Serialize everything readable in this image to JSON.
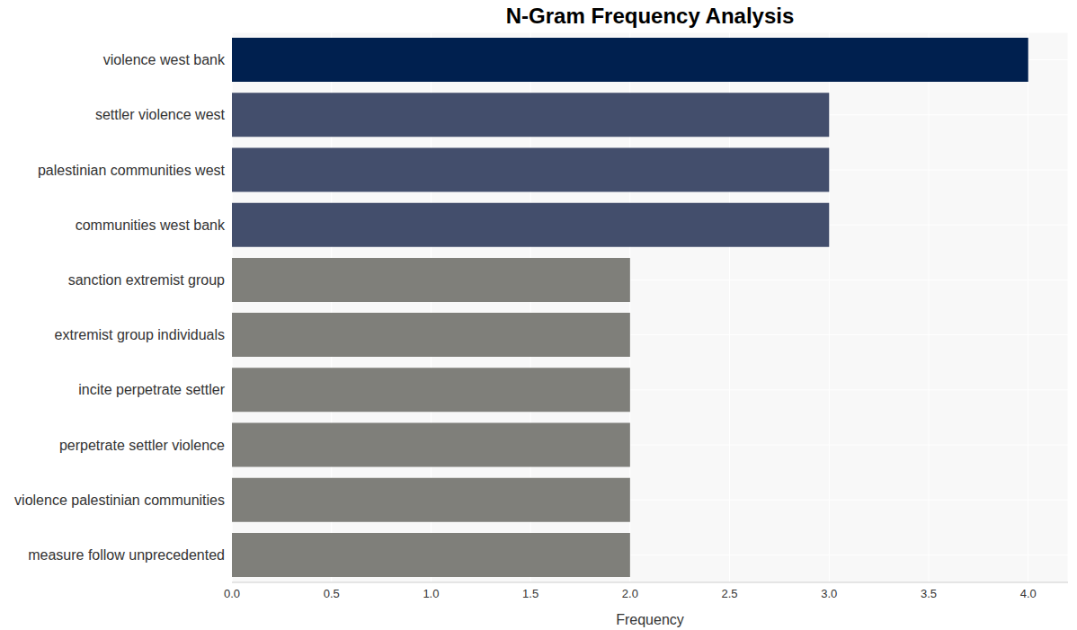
{
  "chart_data": {
    "type": "bar",
    "title": "N-Gram Frequency Analysis",
    "x_label": "Frequency",
    "orientation": "horizontal",
    "categories": [
      "violence west bank",
      "settler violence west",
      "palestinian communities west",
      "communities west bank",
      "sanction extremist group",
      "extremist group individuals",
      "incite perpetrate settler",
      "perpetrate settler violence",
      "violence palestinian communities",
      "measure follow unprecedented"
    ],
    "values": [
      4,
      3,
      3,
      3,
      2,
      2,
      2,
      2,
      2,
      2
    ],
    "colors": [
      "#00204f",
      "#434e6c",
      "#434e6c",
      "#434e6c",
      "#7f7f7a",
      "#7f7f7a",
      "#7f7f7a",
      "#7f7f7a",
      "#7f7f7a",
      "#7f7f7a"
    ],
    "xlim": [
      0,
      4.2
    ],
    "xticks": [
      {
        "value": 0,
        "label": "0.0"
      },
      {
        "value": 0.5,
        "label": "0.5"
      },
      {
        "value": 1,
        "label": "1.0"
      },
      {
        "value": 1.5,
        "label": "1.5"
      },
      {
        "value": 2,
        "label": "2.0"
      },
      {
        "value": 2.5,
        "label": "2.5"
      },
      {
        "value": 3,
        "label": "3.0"
      },
      {
        "value": 3.5,
        "label": "3.5"
      },
      {
        "value": 4,
        "label": "4.0"
      }
    ],
    "grid": true
  }
}
